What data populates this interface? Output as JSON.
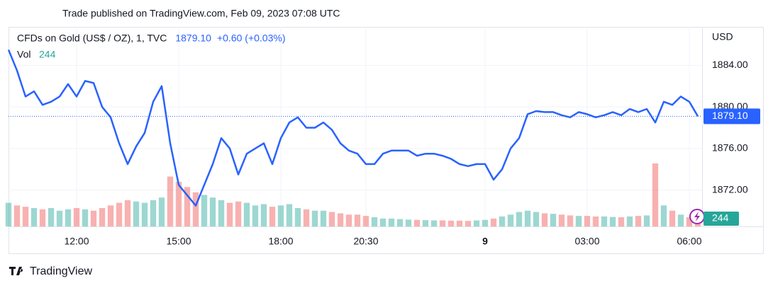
{
  "chart_data": {
    "type": "line",
    "published": "Trade published on TradingView.com, Feb 09, 2023 07:08 UTC",
    "symbol": "CFDs on Gold (US$ / OZ), 1, TVC",
    "last_price_label": "1879.10",
    "change_label": "+0.60 (+0.03%)",
    "volume_title": "Vol",
    "axis_unit": "USD",
    "brand": "TradingView",
    "x": [
      10,
      10.25,
      10.5,
      10.75,
      11,
      11.25,
      11.5,
      11.75,
      12,
      12.25,
      12.5,
      12.75,
      13,
      13.25,
      13.5,
      13.75,
      14,
      14.25,
      14.5,
      14.75,
      15,
      15.25,
      15.5,
      15.75,
      16,
      16.25,
      16.5,
      16.75,
      17,
      17.25,
      17.5,
      17.75,
      18,
      18.25,
      18.5,
      18.75,
      19,
      19.25,
      19.5,
      19.75,
      20,
      20.25,
      20.5,
      20.75,
      21,
      21.25,
      21.5,
      21.75,
      22,
      22.25,
      22.5,
      22.75,
      23,
      23.25,
      23.5,
      23.75,
      24,
      24.25,
      24.5,
      24.75,
      25,
      25.25,
      25.5,
      25.75,
      26,
      26.25,
      26.5,
      26.75,
      27,
      27.25,
      27.5,
      27.75,
      28,
      28.25,
      28.5,
      28.75,
      29,
      29.25,
      29.5,
      29.75,
      30,
      30.25
    ],
    "series": [
      {
        "name": "CFDs on Gold",
        "color": "#2962ff",
        "values": [
          1885.5,
          1883.5,
          1881.0,
          1881.5,
          1880.2,
          1880.5,
          1881.0,
          1882.2,
          1881.0,
          1882.5,
          1882.3,
          1880.0,
          1879.0,
          1876.5,
          1874.5,
          1876.2,
          1877.5,
          1880.5,
          1882.0,
          1876.5,
          1872.5,
          1871.5,
          1870.5,
          1872.5,
          1874.5,
          1877.0,
          1876.0,
          1873.5,
          1875.5,
          1876.0,
          1876.5,
          1874.5,
          1877.0,
          1878.5,
          1879.0,
          1878.0,
          1878.0,
          1878.5,
          1877.8,
          1876.5,
          1875.8,
          1875.5,
          1874.5,
          1874.5,
          1875.5,
          1875.8,
          1875.8,
          1875.8,
          1875.3,
          1875.5,
          1875.5,
          1875.3,
          1875.0,
          1874.5,
          1874.3,
          1874.5,
          1874.5,
          1873.0,
          1874.0,
          1876.0,
          1877.0,
          1879.3,
          1879.6,
          1879.5,
          1879.5,
          1879.2,
          1879.0,
          1879.5,
          1879.3,
          1879.0,
          1879.2,
          1879.5,
          1879.2,
          1879.8,
          1879.5,
          1879.8,
          1878.5,
          1880.5,
          1880.2,
          1881.0,
          1880.5,
          1879.1
        ]
      }
    ],
    "volume": {
      "name": "Vol",
      "up_color": "#26a69a",
      "down_color": "#ef5350",
      "values": [
        900,
        800,
        750,
        700,
        650,
        700,
        600,
        650,
        700,
        650,
        600,
        700,
        800,
        900,
        1000,
        950,
        900,
        1000,
        1100,
        1900,
        1700,
        1500,
        1300,
        1200,
        1100,
        1000,
        900,
        950,
        900,
        800,
        850,
        750,
        800,
        850,
        700,
        650,
        600,
        600,
        550,
        500,
        450,
        450,
        400,
        350,
        300,
        300,
        280,
        260,
        250,
        240,
        230,
        230,
        220,
        220,
        210,
        230,
        250,
        300,
        380,
        450,
        550,
        600,
        550,
        500,
        480,
        450,
        420,
        400,
        400,
        380,
        380,
        360,
        350,
        380,
        400,
        420,
        2400,
        800,
        600,
        450,
        350,
        244
      ]
    },
    "xlim": [
      10,
      30.375
    ],
    "xticks": [
      {
        "value": 12,
        "label": "12:00"
      },
      {
        "value": 15,
        "label": "15:00"
      },
      {
        "value": 18,
        "label": "18:00"
      },
      {
        "value": 20.5,
        "label": "20:30"
      },
      {
        "value": 24,
        "label": "9"
      },
      {
        "value": 27,
        "label": "03:00"
      },
      {
        "value": 30,
        "label": "06:00"
      }
    ],
    "ylim": [
      1868.5,
      1887.7
    ],
    "yticks": [
      {
        "value": 1872,
        "label": "1872.00"
      },
      {
        "value": 1876,
        "label": "1876.00"
      },
      {
        "value": 1880,
        "label": "1880.00"
      },
      {
        "value": 1884,
        "label": "1884.00"
      }
    ],
    "volume_ylim": [
      0,
      7600
    ],
    "grid": true
  }
}
